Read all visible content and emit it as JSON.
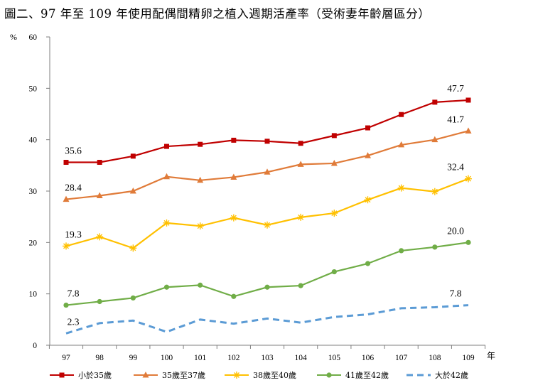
{
  "title": "圖二、97 年至 109 年使用配偶間精卵之植入週期活產率（受術妻年齡層區分）",
  "chart_data": {
    "type": "line",
    "ylabel": "%",
    "xlabel": "年",
    "ylim": [
      0,
      60
    ],
    "yticks": [
      0,
      10,
      20,
      30,
      40,
      50,
      60
    ],
    "categories": [
      "97",
      "98",
      "99",
      "100",
      "101",
      "102",
      "103",
      "104",
      "105",
      "106",
      "107",
      "108",
      "109"
    ],
    "grid": false,
    "legend_position": "bottom",
    "series": [
      {
        "name": "小於35歲",
        "color": "#c00000",
        "marker": "square",
        "dash": false,
        "values": [
          35.6,
          35.6,
          36.8,
          38.7,
          39.1,
          39.9,
          39.7,
          39.3,
          40.8,
          42.3,
          44.9,
          47.3,
          47.7
        ],
        "labels": {
          "0": "35.6",
          "12": "47.7"
        }
      },
      {
        "name": "35歲至37歲",
        "color": "#e07b39",
        "marker": "triangle",
        "dash": false,
        "values": [
          28.4,
          29.1,
          30.0,
          32.8,
          32.1,
          32.7,
          33.7,
          35.2,
          35.4,
          36.9,
          39.0,
          40.0,
          41.7
        ],
        "labels": {
          "0": "28.4",
          "12": "41.7"
        }
      },
      {
        "name": "38歲至40歲",
        "color": "#ffc000",
        "marker": "star",
        "dash": false,
        "values": [
          19.3,
          21.1,
          18.9,
          23.8,
          23.2,
          24.8,
          23.4,
          24.9,
          25.7,
          28.3,
          30.6,
          29.9,
          32.4
        ],
        "labels": {
          "0": "19.3",
          "12": "32.4"
        }
      },
      {
        "name": "41歲至42歲",
        "color": "#70ad47",
        "marker": "circle",
        "dash": false,
        "values": [
          7.8,
          8.5,
          9.2,
          11.3,
          11.7,
          9.5,
          11.3,
          11.6,
          14.3,
          15.9,
          18.4,
          19.1,
          20.0
        ],
        "labels": {
          "0": "7.8",
          "12": "20.0"
        }
      },
      {
        "name": "大於42歲",
        "color": "#5b9bd5",
        "marker": "none",
        "dash": true,
        "values": [
          2.3,
          4.3,
          4.8,
          2.6,
          5.0,
          4.2,
          5.2,
          4.4,
          5.5,
          6.0,
          7.2,
          7.4,
          7.8
        ],
        "labels": {
          "0": "2.3",
          "12": "7.8"
        }
      }
    ]
  }
}
